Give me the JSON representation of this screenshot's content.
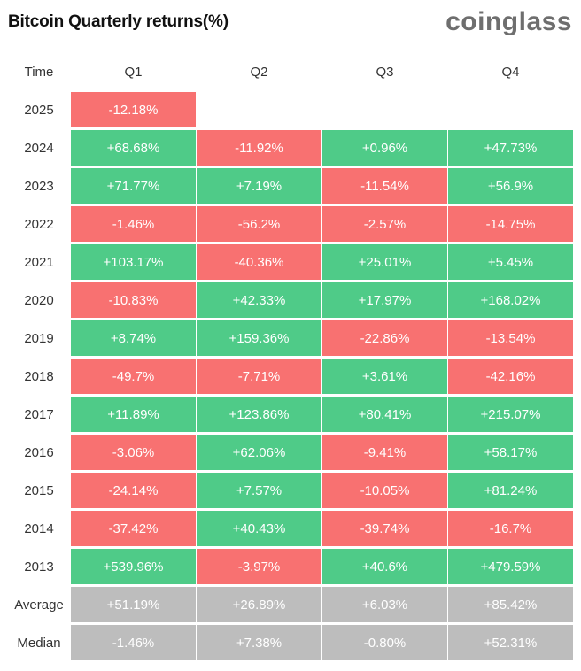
{
  "title": "Bitcoin Quarterly returns(%)",
  "brand": "coinglass",
  "colors": {
    "positive": "#4fcb88",
    "negative": "#f87171",
    "summary": "#bdbdbd"
  },
  "chart_data": {
    "type": "table",
    "title": "Bitcoin Quarterly returns(%)",
    "header": [
      "Time",
      "Q1",
      "Q2",
      "Q3",
      "Q4"
    ],
    "rows": [
      {
        "label": "2025",
        "values": [
          "-12.18%",
          null,
          null,
          null
        ]
      },
      {
        "label": "2024",
        "values": [
          "+68.68%",
          "-11.92%",
          "+0.96%",
          "+47.73%"
        ]
      },
      {
        "label": "2023",
        "values": [
          "+71.77%",
          "+7.19%",
          "-11.54%",
          "+56.9%"
        ]
      },
      {
        "label": "2022",
        "values": [
          "-1.46%",
          "-56.2%",
          "-2.57%",
          "-14.75%"
        ]
      },
      {
        "label": "2021",
        "values": [
          "+103.17%",
          "-40.36%",
          "+25.01%",
          "+5.45%"
        ]
      },
      {
        "label": "2020",
        "values": [
          "-10.83%",
          "+42.33%",
          "+17.97%",
          "+168.02%"
        ]
      },
      {
        "label": "2019",
        "values": [
          "+8.74%",
          "+159.36%",
          "-22.86%",
          "-13.54%"
        ]
      },
      {
        "label": "2018",
        "values": [
          "-49.7%",
          "-7.71%",
          "+3.61%",
          "-42.16%"
        ]
      },
      {
        "label": "2017",
        "values": [
          "+11.89%",
          "+123.86%",
          "+80.41%",
          "+215.07%"
        ]
      },
      {
        "label": "2016",
        "values": [
          "-3.06%",
          "+62.06%",
          "-9.41%",
          "+58.17%"
        ]
      },
      {
        "label": "2015",
        "values": [
          "-24.14%",
          "+7.57%",
          "-10.05%",
          "+81.24%"
        ]
      },
      {
        "label": "2014",
        "values": [
          "-37.42%",
          "+40.43%",
          "-39.74%",
          "-16.7%"
        ]
      },
      {
        "label": "2013",
        "values": [
          "+539.96%",
          "-3.97%",
          "+40.6%",
          "+479.59%"
        ]
      },
      {
        "label": "Average",
        "summary": true,
        "values": [
          "+51.19%",
          "+26.89%",
          "+6.03%",
          "+85.42%"
        ]
      },
      {
        "label": "Median",
        "summary": true,
        "values": [
          "-1.46%",
          "+7.38%",
          "-0.80%",
          "+52.31%"
        ]
      }
    ]
  }
}
